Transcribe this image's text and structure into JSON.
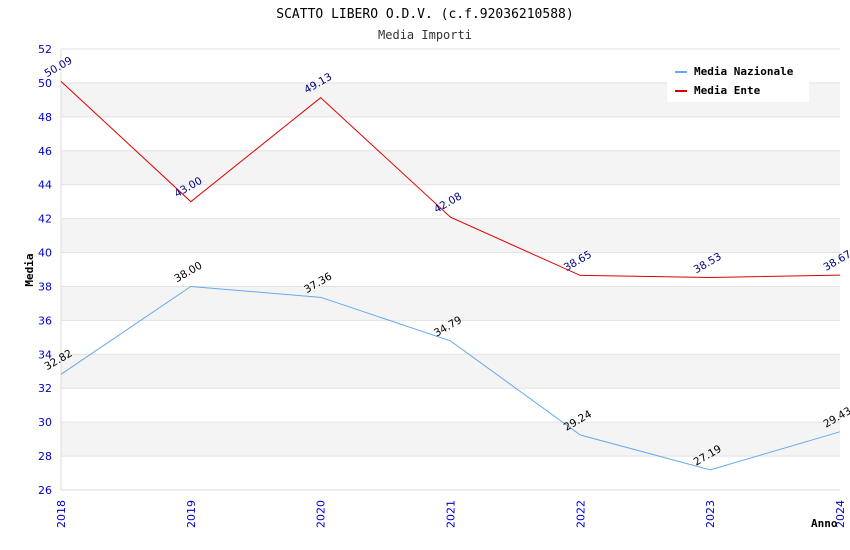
{
  "chart_data": {
    "type": "line",
    "title": "SCATTO LIBERO O.D.V. (c.f.92036210588)",
    "subtitle": "Media Importi",
    "xlabel": "Anno",
    "ylabel": "Media",
    "ylim": [
      26,
      52
    ],
    "yticks": [
      26,
      28,
      30,
      32,
      34,
      36,
      38,
      40,
      42,
      44,
      46,
      48,
      50,
      52
    ],
    "categories": [
      "2018",
      "2019",
      "2020",
      "2021",
      "2022",
      "2023",
      "2024"
    ],
    "grid": true,
    "legend_position": "top-right",
    "series": [
      {
        "name": "Media Nazionale",
        "color": "#66aaee",
        "label_color": "#000000",
        "values": [
          32.82,
          38.0,
          37.36,
          34.79,
          29.24,
          27.19,
          29.43
        ],
        "labels": [
          "32.82",
          "38.00",
          "37.36",
          "34.79",
          "29.24",
          "27.19",
          "29.43"
        ]
      },
      {
        "name": "Media Ente",
        "color": "#dd0000",
        "label_color": "#000080",
        "values": [
          50.09,
          43.0,
          49.13,
          42.08,
          38.65,
          38.53,
          38.67
        ],
        "labels": [
          "50.09",
          "43.00",
          "49.13",
          "42.08",
          "38.65",
          "38.53",
          "38.67"
        ]
      }
    ]
  }
}
